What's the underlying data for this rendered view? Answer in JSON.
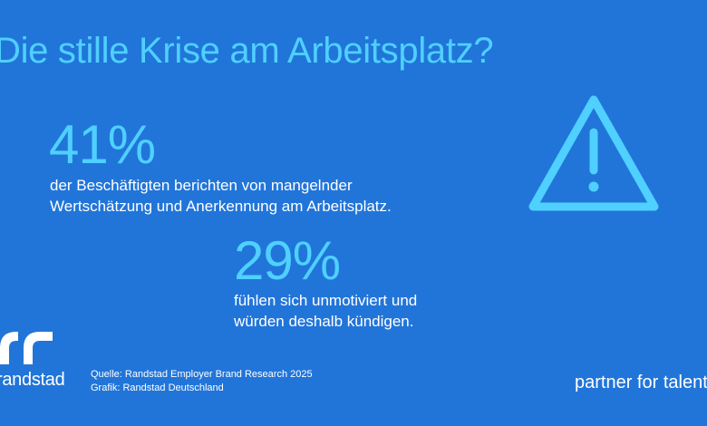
{
  "title": "Die stille Krise am Arbeitsplatz?",
  "stats": [
    {
      "value": "41%",
      "line1": "der Beschäftigten berichten von mangelnder",
      "line2": "Wertschätzung und Anerkennung am Arbeitsplatz."
    },
    {
      "value": "29%",
      "line1": "fühlen sich unmotiviert und",
      "line2": "würden deshalb kündigen."
    }
  ],
  "icons": {
    "warning": "warning-triangle-icon",
    "logo": "randstad-logo-mark"
  },
  "brand": {
    "logo_text": "randstad",
    "tagline": "partner for talent"
  },
  "footer": {
    "source": "Quelle: Randstad Employer Brand Research 2025",
    "graphic": "Grafik: Randstad Deutschland"
  },
  "colors": {
    "background": "#2175d9",
    "accent": "#4fd0ff",
    "text": "#ffffff"
  }
}
